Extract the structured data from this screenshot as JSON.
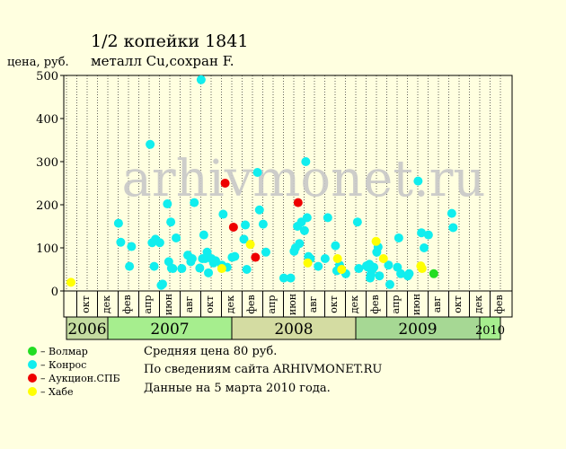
{
  "chart_data": {
    "type": "scatter",
    "title": "1/2 копейки 1841",
    "subtitle": "металл Cu,сохран F.",
    "ylabel": "цена, руб.",
    "ylim": [
      0,
      500
    ],
    "yticks": [
      0,
      100,
      200,
      300,
      400,
      500
    ],
    "watermark": "arhivmonet.ru",
    "x_start": "2006-09",
    "x_range": [
      "2006-09",
      "2010-03"
    ],
    "months": [
      {
        "date": "2006-10",
        "label": "окт"
      },
      {
        "date": "2006-12",
        "label": "дек"
      },
      {
        "date": "2007-02",
        "label": "фев"
      },
      {
        "date": "2007-04",
        "label": "апр"
      },
      {
        "date": "2007-06",
        "label": "июн"
      },
      {
        "date": "2007-08",
        "label": "авг"
      },
      {
        "date": "2007-10",
        "label": "окт"
      },
      {
        "date": "2007-12",
        "label": "дек"
      },
      {
        "date": "2008-02",
        "label": "фев"
      },
      {
        "date": "2008-04",
        "label": "апр"
      },
      {
        "date": "2008-06",
        "label": "июн"
      },
      {
        "date": "2008-08",
        "label": "авг"
      },
      {
        "date": "2008-10",
        "label": "окт"
      },
      {
        "date": "2008-12",
        "label": "дек"
      },
      {
        "date": "2009-02",
        "label": "фев"
      },
      {
        "date": "2009-04",
        "label": "апр"
      },
      {
        "date": "2009-06",
        "label": "июн"
      },
      {
        "date": "2009-08",
        "label": "авг"
      },
      {
        "date": "2009-10",
        "label": "окт"
      },
      {
        "date": "2009-12",
        "label": "дек"
      },
      {
        "date": "2010-02",
        "label": "фев"
      }
    ],
    "years": [
      {
        "label": "2006",
        "start": "2006-09",
        "end": "2007-01",
        "color": "#c4dca0"
      },
      {
        "label": "2007",
        "start": "2007-01",
        "end": "2008-01",
        "color": "#a6ee8e"
      },
      {
        "label": "2008",
        "start": "2008-01",
        "end": "2009-01",
        "color": "#d4dca2"
      },
      {
        "label": "2009",
        "start": "2009-01",
        "end": "2010-01",
        "color": "#a6d894"
      },
      {
        "label": "2010",
        "start": "2010-01",
        "end": "2010-03",
        "color": "#a6ee8e"
      }
    ],
    "series": [
      {
        "name": "Волмар",
        "color": "#22dd22",
        "points": [
          [
            "2009-08-18",
            40
          ]
        ]
      },
      {
        "name": "Конрос",
        "color": "#11eeee",
        "points": [
          [
            "2007-02-02",
            157
          ],
          [
            "2007-02-08",
            113
          ],
          [
            "2007-03-04",
            57
          ],
          [
            "2007-03-10",
            103
          ],
          [
            "2007-05-04",
            340
          ],
          [
            "2007-05-10",
            112
          ],
          [
            "2007-05-16",
            57
          ],
          [
            "2007-05-20",
            120
          ],
          [
            "2007-06-02",
            112
          ],
          [
            "2007-06-06",
            13
          ],
          [
            "2007-06-10",
            16
          ],
          [
            "2007-06-24",
            202
          ],
          [
            "2007-06-28",
            68
          ],
          [
            "2007-07-04",
            160
          ],
          [
            "2007-07-06",
            53
          ],
          [
            "2007-07-10",
            52
          ],
          [
            "2007-07-20",
            123
          ],
          [
            "2007-08-06",
            52
          ],
          [
            "2007-08-24",
            83
          ],
          [
            "2007-09-02",
            68
          ],
          [
            "2007-09-06",
            75
          ],
          [
            "2007-09-12",
            205
          ],
          [
            "2007-09-28",
            53
          ],
          [
            "2007-10-02",
            490
          ],
          [
            "2007-10-06",
            75
          ],
          [
            "2007-10-10",
            130
          ],
          [
            "2007-10-14",
            75
          ],
          [
            "2007-10-20",
            90
          ],
          [
            "2007-10-24",
            42
          ],
          [
            "2007-11-02",
            75
          ],
          [
            "2007-11-08",
            65
          ],
          [
            "2007-11-14",
            70
          ],
          [
            "2007-12-02",
            60
          ],
          [
            "2007-12-06",
            178
          ],
          [
            "2007-12-18",
            55
          ],
          [
            "2008-01-02",
            78
          ],
          [
            "2008-01-10",
            80
          ],
          [
            "2008-02-06",
            120
          ],
          [
            "2008-02-10",
            153
          ],
          [
            "2008-02-14",
            50
          ],
          [
            "2008-03-16",
            275
          ],
          [
            "2008-03-22",
            188
          ],
          [
            "2008-04-02",
            155
          ],
          [
            "2008-04-10",
            90
          ],
          [
            "2008-06-02",
            30
          ],
          [
            "2008-06-22",
            30
          ],
          [
            "2008-07-02",
            92
          ],
          [
            "2008-07-06",
            100
          ],
          [
            "2008-07-12",
            150
          ],
          [
            "2008-07-18",
            110
          ],
          [
            "2008-07-24",
            160
          ],
          [
            "2008-08-02",
            140
          ],
          [
            "2008-08-06",
            300
          ],
          [
            "2008-08-10",
            170
          ],
          [
            "2008-08-14",
            80
          ],
          [
            "2008-08-20",
            75
          ],
          [
            "2008-09-12",
            57
          ],
          [
            "2008-10-02",
            75
          ],
          [
            "2008-10-10",
            170
          ],
          [
            "2008-11-02",
            105
          ],
          [
            "2008-11-06",
            47
          ],
          [
            "2008-11-14",
            60
          ],
          [
            "2008-12-02",
            40
          ],
          [
            "2009-01-06",
            160
          ],
          [
            "2009-01-10",
            52
          ],
          [
            "2009-02-02",
            58
          ],
          [
            "2009-02-06",
            55
          ],
          [
            "2009-02-10",
            62
          ],
          [
            "2009-02-12",
            30
          ],
          [
            "2009-02-14",
            38
          ],
          [
            "2009-02-18",
            50
          ],
          [
            "2009-02-22",
            55
          ],
          [
            "2009-03-02",
            90
          ],
          [
            "2009-03-06",
            102
          ],
          [
            "2009-03-10",
            35
          ],
          [
            "2009-04-06",
            60
          ],
          [
            "2009-04-10",
            15
          ],
          [
            "2009-05-02",
            55
          ],
          [
            "2009-05-06",
            123
          ],
          [
            "2009-05-12",
            40
          ],
          [
            "2009-06-02",
            35
          ],
          [
            "2009-06-06",
            40
          ],
          [
            "2009-07-02",
            255
          ],
          [
            "2009-07-12",
            135
          ],
          [
            "2009-07-20",
            100
          ],
          [
            "2009-08-02",
            130
          ],
          [
            "2009-10-10",
            180
          ],
          [
            "2009-10-14",
            147
          ]
        ]
      },
      {
        "name": "Аукцион.СПБ",
        "color": "#ee0000",
        "points": [
          [
            "2007-12-12",
            250
          ],
          [
            "2008-01-06",
            148
          ],
          [
            "2008-03-10",
            78
          ],
          [
            "2008-07-14",
            205
          ]
        ]
      },
      {
        "name": "Хабе",
        "color": "#ffff00",
        "points": [
          [
            "2006-09-14",
            20
          ],
          [
            "2007-12-02",
            52
          ],
          [
            "2008-02-24",
            108
          ],
          [
            "2008-08-12",
            65
          ],
          [
            "2008-11-08",
            75
          ],
          [
            "2008-11-20",
            50
          ],
          [
            "2009-02-28",
            115
          ],
          [
            "2009-03-22",
            75
          ],
          [
            "2009-07-10",
            58
          ],
          [
            "2009-07-14",
            52
          ]
        ]
      }
    ]
  },
  "info": {
    "line1": "Средняя цена 80 руб.",
    "line2": "По  сведениям сайта ARHIVMONET.RU",
    "line3": "Данные на 5 марта 2010 года."
  },
  "legend_prefix": "– "
}
